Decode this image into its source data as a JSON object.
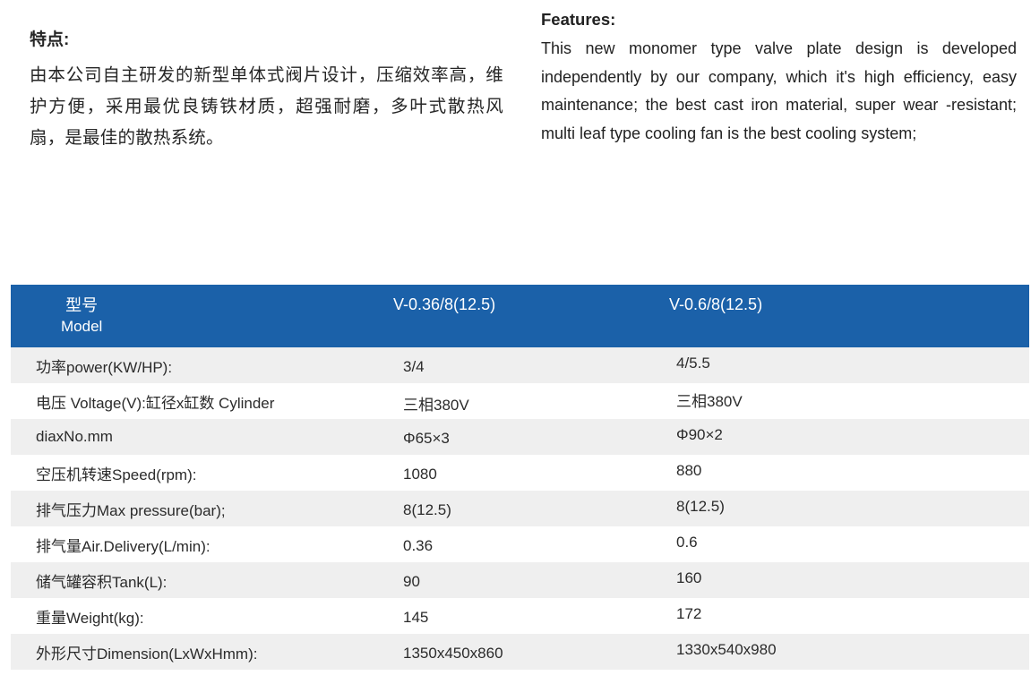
{
  "features_cn": {
    "title": "特点:",
    "body": "由本公司自主研发的新型单体式阀片设计，压缩效率高，维护方便，采用最优良铸铁材质，超强耐磨，多叶式散热风扇，是最佳的散热系统。"
  },
  "features_en": {
    "title": "Features:",
    "body": "This new monomer type valve plate design is developed independently by our company, which it's high efficiency, easy maintenance; the best cast iron material, super wear -resistant; multi leaf type cooling fan is the best cooling system;"
  },
  "spec_table": {
    "header": {
      "model_cn": "型号",
      "model_en": "Model",
      "col1": "V-0.36/8(12.5)",
      "col2": "V-0.6/8(12.5)"
    },
    "rows": [
      {
        "label": "功率power(KW/HP):",
        "v1": "3/4",
        "v2": "4/5.5"
      },
      {
        "label": "电压 Voltage(V):缸径x缸数 Cylinder",
        "v1": "三相380V",
        "v2": "三相380V"
      },
      {
        "label": "diaxNo.mm",
        "v1": "Φ65×3",
        "v2": "Φ90×2"
      },
      {
        "label": "空压机转速Speed(rpm):",
        "v1": "1080",
        "v2": "880"
      },
      {
        "label": "排气压力Max pressure(bar);",
        "v1": "8(12.5)",
        "v2": "8(12.5)"
      },
      {
        "label": "排气量Air.Delivery(L/min):",
        "v1": "0.36",
        "v2": "0.6"
      },
      {
        "label": "储气罐容积Tank(L):",
        "v1": "90",
        "v2": "160"
      },
      {
        "label": "重量Weight(kg):",
        "v1": "145",
        "v2": "172"
      },
      {
        "label": "外形尺寸Dimension(LxWxHmm):",
        "v1": "1350x450x860",
        "v2": "1330x540x980"
      }
    ]
  },
  "colors": {
    "header_blue": "#1B61A9",
    "row_stripe": "#EFEFEF",
    "header_text": "#FFFFFF"
  }
}
